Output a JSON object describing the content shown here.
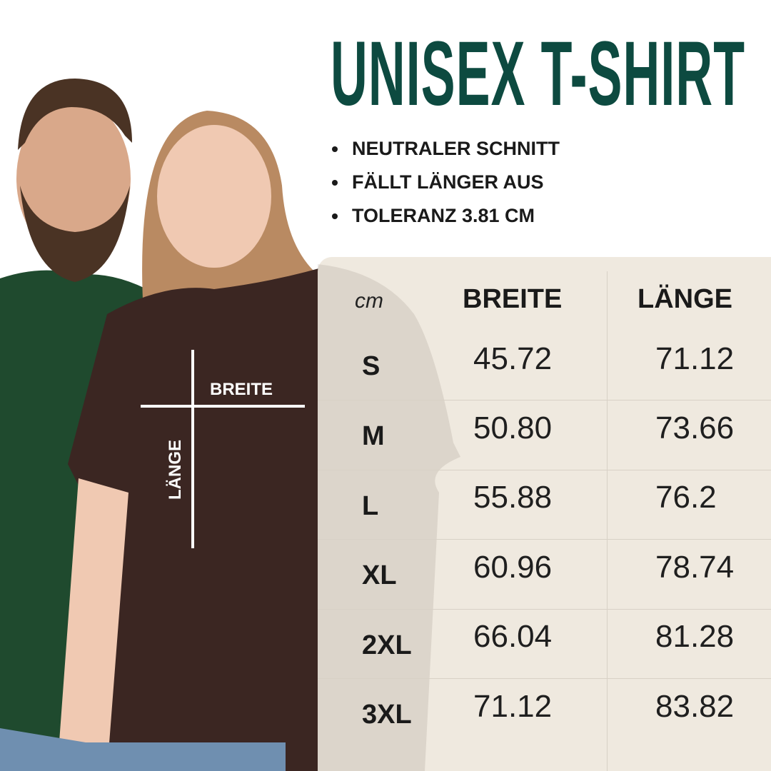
{
  "title": "UNISEX T-SHIRT",
  "bullets": [
    "NEUTRALER SCHNITT",
    "FÄLLT LÄNGER AUS",
    "TOLERANZ 3.81 CM"
  ],
  "shirt_labels": {
    "width": "BREITE",
    "length": "LÄNGE"
  },
  "table": {
    "unit": "cm",
    "columns": [
      "BREITE",
      "LÄNGE"
    ],
    "rows": [
      {
        "size": "S",
        "breite": "45.72",
        "laenge": "71.12"
      },
      {
        "size": "M",
        "breite": "50.80",
        "laenge": "73.66"
      },
      {
        "size": "L",
        "breite": "55.88",
        "laenge": "76.2"
      },
      {
        "size": "XL",
        "breite": "60.96",
        "laenge": "78.74"
      },
      {
        "size": "2XL",
        "breite": "66.04",
        "laenge": "81.28"
      },
      {
        "size": "3XL",
        "breite": "71.12",
        "laenge": "83.82"
      }
    ]
  },
  "colors": {
    "title": "#0d4a40",
    "panel": "#efe9df",
    "green_shirt": "#1f4a2e",
    "brown_shirt": "#3b2622"
  }
}
